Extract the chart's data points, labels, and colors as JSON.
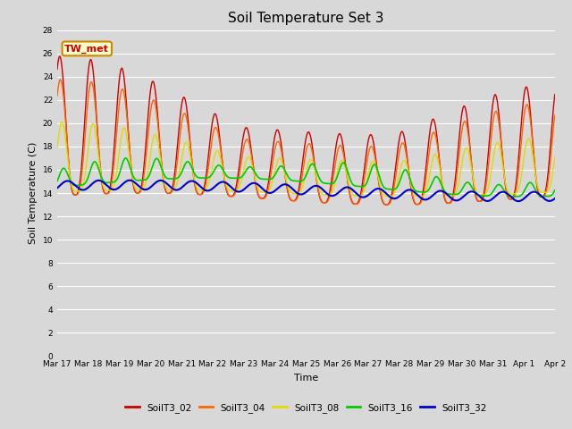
{
  "title": "Soil Temperature Set 3",
  "xlabel": "Time",
  "ylabel": "Soil Temperature (C)",
  "annotation_text": "TW_met",
  "annotation_color": "#cc0000",
  "annotation_bg": "#ffffcc",
  "annotation_border": "#cc8800",
  "ylim": [
    0,
    28
  ],
  "yticks": [
    0,
    2,
    4,
    6,
    8,
    10,
    12,
    14,
    16,
    18,
    20,
    22,
    24,
    26,
    28
  ],
  "bg_color": "#d8d8d8",
  "series": {
    "SoilT3_02": {
      "color": "#cc0000",
      "lw": 1.0
    },
    "SoilT3_04": {
      "color": "#ff6600",
      "lw": 1.0
    },
    "SoilT3_08": {
      "color": "#dddd00",
      "lw": 1.0
    },
    "SoilT3_16": {
      "color": "#00cc00",
      "lw": 1.2
    },
    "SoilT3_32": {
      "color": "#0000cc",
      "lw": 1.5
    }
  },
  "num_days": 16,
  "start_day": 17,
  "points_per_day": 144
}
